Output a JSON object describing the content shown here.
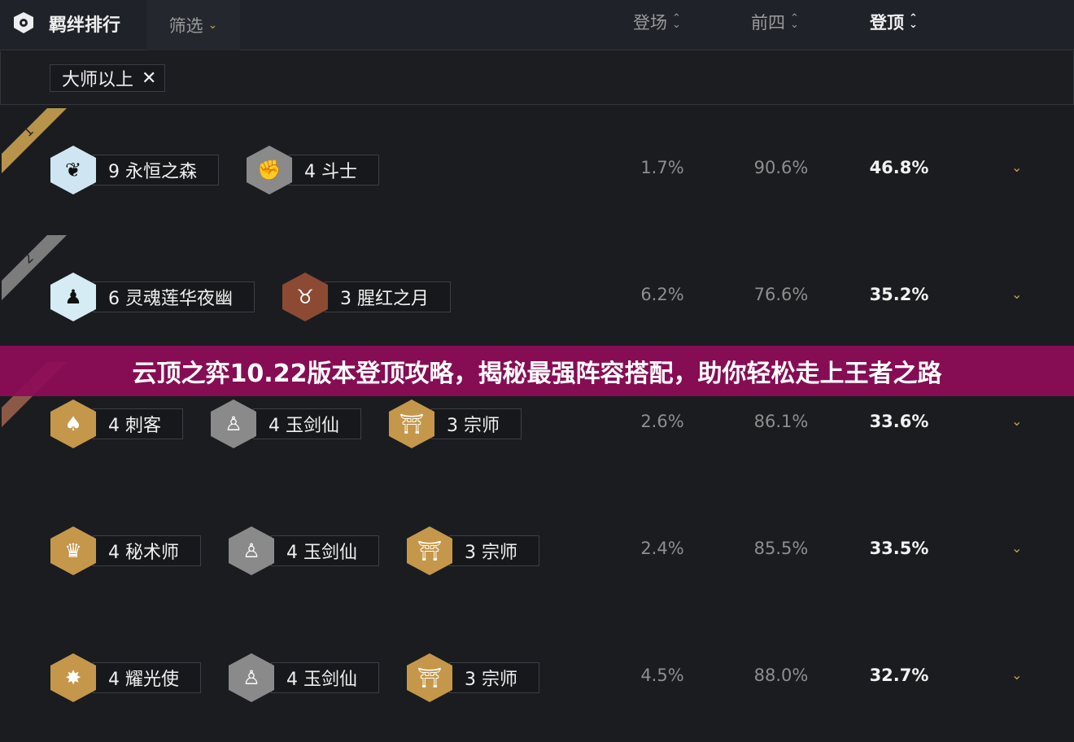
{
  "header": {
    "title": "羁绊排行",
    "filter_label": "筛选",
    "columns": [
      {
        "label": "登场"
      },
      {
        "label": "前四"
      },
      {
        "label": "登顶",
        "active": true
      }
    ]
  },
  "filters": {
    "chips": [
      {
        "label": "大师以上",
        "remove": "✕"
      }
    ]
  },
  "rows": [
    {
      "rank": "1",
      "rank_color": "#b8934a",
      "traits": [
        {
          "label": "9 永恒之森",
          "icon": "sprout-icon",
          "glyph": "❦",
          "color": "#cfe6f2"
        },
        {
          "label": "4 斗士",
          "icon": "fist-icon",
          "glyph": "✊",
          "color": "#8a8a8a"
        }
      ],
      "appear": "1.7%",
      "top4": "90.6%",
      "win": "46.8%"
    },
    {
      "rank": "2",
      "rank_color": "#7c7c7c",
      "traits": [
        {
          "label": "6 灵魂莲华夜幽",
          "icon": "lantern-icon",
          "glyph": "♟",
          "color": "#d6ecf4"
        },
        {
          "label": "3 腥红之月",
          "icon": "demon-icon",
          "glyph": "♉",
          "color": "#8c4a32"
        }
      ],
      "appear": "6.2%",
      "top4": "76.6%",
      "win": "35.2%"
    },
    {
      "rank": "3",
      "rank_color": "#8a5a46",
      "traits": [
        {
          "label": "4 刺客",
          "icon": "hood-icon",
          "glyph": "♠",
          "color": "#c4974a"
        },
        {
          "label": "4 玉剑仙",
          "icon": "meditation-icon",
          "glyph": "♙",
          "color": "#8a8a8a"
        },
        {
          "label": "3 宗师",
          "icon": "torii-icon",
          "glyph": "⛩",
          "color": "#c4974a"
        }
      ],
      "appear": "2.6%",
      "top4": "86.1%",
      "win": "33.6%"
    },
    {
      "rank": "",
      "rank_color": "",
      "traits": [
        {
          "label": "4 秘术师",
          "icon": "crown-icon",
          "glyph": "♛",
          "color": "#c4974a"
        },
        {
          "label": "4 玉剑仙",
          "icon": "meditation-icon",
          "glyph": "♙",
          "color": "#8a8a8a"
        },
        {
          "label": "3 宗师",
          "icon": "torii-icon",
          "glyph": "⛩",
          "color": "#c4974a"
        }
      ],
      "appear": "2.4%",
      "top4": "85.5%",
      "win": "33.5%"
    },
    {
      "rank": "",
      "rank_color": "",
      "traits": [
        {
          "label": "4 耀光使",
          "icon": "sunburst-icon",
          "glyph": "✸",
          "color": "#c4974a"
        },
        {
          "label": "4 玉剑仙",
          "icon": "meditation-icon",
          "glyph": "♙",
          "color": "#8a8a8a"
        },
        {
          "label": "3 宗师",
          "icon": "torii-icon",
          "glyph": "⛩",
          "color": "#c4974a"
        }
      ],
      "appear": "4.5%",
      "top4": "88.0%",
      "win": "32.7%"
    }
  ],
  "banner": {
    "text": "云顶之弈10.22版本登顶攻略，揭秘最强阵容搭配，助你轻松走上王者之路"
  }
}
